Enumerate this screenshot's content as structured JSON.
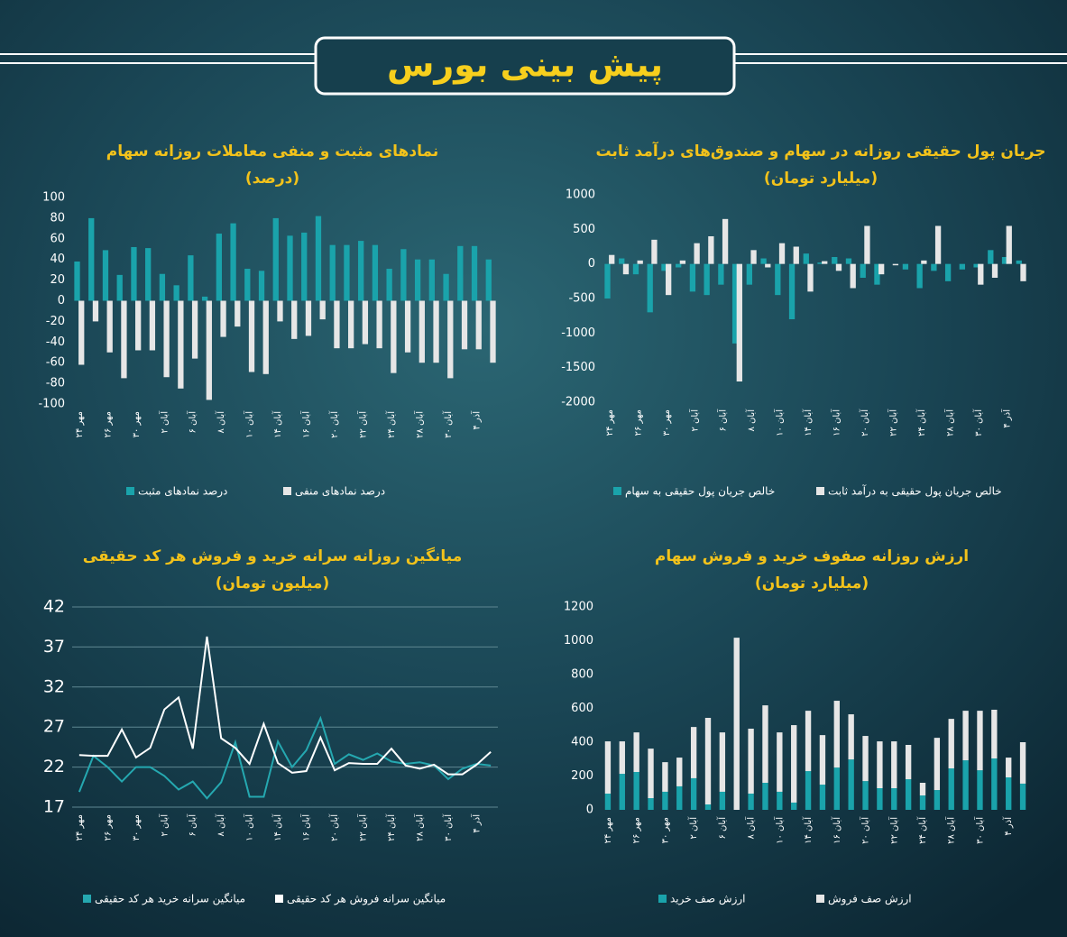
{
  "page_title": "پیش بینی بورس",
  "chart_data": [
    {
      "type": "bar",
      "title": "نمادهای مثبت و منفی معاملات روزانه سهام",
      "subtitle": "(درصد)",
      "categories": [
        "۲۴ مهر",
        null,
        "۲۶ مهر",
        null,
        "۳۰ مهر",
        null,
        "۲ آبان",
        null,
        "۶ آبان",
        null,
        "۸ آبان",
        null,
        "۱۰ آبان",
        null,
        "۱۴ آبان",
        null,
        "۱۶ آبان",
        null,
        "۲۰ آبان",
        null,
        "۲۲ آبان",
        null,
        "۲۴ آبان",
        null,
        "۲۸ آبان",
        null,
        "۳۰ آبان",
        null,
        "۴ آذر",
        null
      ],
      "series": [
        {
          "name": "درصد نمادهای مثبت",
          "color": "#1aa3ab",
          "values": [
            38,
            80,
            49,
            25,
            52,
            51,
            26,
            15,
            44,
            4,
            65,
            75,
            31,
            29,
            80,
            63,
            66,
            82,
            54,
            54,
            58,
            54,
            31,
            50,
            40,
            40,
            26,
            53,
            53,
            40
          ]
        },
        {
          "name": "درصد نمادهای منفی",
          "color": "#e6e6e6",
          "values": [
            -62,
            -20,
            -50,
            -75,
            -48,
            -48,
            -74,
            -85,
            -56,
            -96,
            -35,
            -25,
            -69,
            -71,
            -20,
            -37,
            -34,
            -18,
            -46,
            -46,
            -42,
            -46,
            -70,
            -50,
            -60,
            -60,
            -75,
            -47,
            -47,
            -60
          ]
        }
      ],
      "ylim": [
        -100,
        100
      ],
      "yticks": [
        -100,
        -80,
        -60,
        -40,
        -20,
        0,
        20,
        40,
        60,
        80,
        100
      ],
      "grid": false
    },
    {
      "type": "bar",
      "title": "جریان پول حقیقی روزانه در سهام و صندوق‌های درآمد ثابت",
      "subtitle": "(میلیارد تومان)",
      "categories": [
        "۲۴ مهر",
        null,
        "۲۶ مهر",
        null,
        "۳۰ مهر",
        null,
        "۲ آبان",
        null,
        "۶ آبان",
        null,
        "۸ آبان",
        null,
        "۱۰ آبان",
        null,
        "۱۴ آبان",
        null,
        "۱۶ آبان",
        null,
        "۲۰ آبان",
        null,
        "۲۲ آبان",
        null,
        "۲۴ آبان",
        null,
        "۲۸ آبان",
        null,
        "۳۰ آبان",
        null,
        "۴ آذر",
        null
      ],
      "series": [
        {
          "name": "خالص جریان پول حقیقی به سهام",
          "color": "#1aa3ab",
          "values": [
            -500,
            80,
            -150,
            -700,
            -100,
            -50,
            -400,
            -450,
            -300,
            -1150,
            -300,
            80,
            -450,
            -800,
            150,
            20,
            100,
            80,
            -200,
            -300,
            0,
            -80,
            -350,
            -100,
            -250,
            -80,
            -50,
            200,
            100,
            50
          ]
        },
        {
          "name": "خالص جریان پول حقیقی به درآمد ثابت",
          "color": "#e6e6e6",
          "values": [
            130,
            -150,
            50,
            350,
            -450,
            50,
            300,
            400,
            650,
            -1700,
            200,
            -50,
            300,
            250,
            -400,
            40,
            -100,
            -350,
            550,
            -150,
            -20,
            0,
            50,
            550,
            0,
            0,
            -300,
            -200,
            550,
            -250
          ]
        }
      ],
      "ylim": [
        -2000,
        1000
      ],
      "yticks": [
        -2000,
        -1500,
        -1000,
        -500,
        0,
        500,
        1000
      ],
      "grid": false
    },
    {
      "type": "line",
      "title": "میانگین روزانه سرانه خرید و فروش هر کد حقیقی",
      "subtitle": "(میلیون تومان)",
      "categories": [
        "۲۴ مهر",
        null,
        "۲۶ مهر",
        null,
        "۳۰ مهر",
        null,
        "۲ آبان",
        null,
        "۶ آبان",
        null,
        "۸ آبان",
        null,
        "۱۰ آبان",
        null,
        "۱۴ آبان",
        null,
        "۱۶ آبان",
        null,
        "۲۰ آبان",
        null,
        "۲۲ آبان",
        null,
        "۲۴ آبان",
        null,
        "۲۸ آبان",
        null,
        "۳۰ آبان",
        null,
        "۴ آذر",
        null
      ],
      "series": [
        {
          "name": "میانگین سرانه خرید هر کد حقیقی",
          "color": "#25a8b0",
          "values": [
            18.9,
            23.4,
            22.0,
            20.2,
            22.0,
            22.0,
            20.9,
            19.2,
            20.2,
            18.1,
            20.1,
            25.1,
            18.3,
            18.3,
            25.2,
            22.0,
            24.1,
            28.1,
            22.4,
            23.6,
            22.9,
            23.7,
            22.7,
            22.4,
            22.6,
            22.2,
            20.5,
            21.8,
            22.4,
            22.2
          ]
        },
        {
          "name": "میانگین سرانه فروش هر کد حقیقی",
          "color": "#ffffff",
          "values": [
            23.5,
            23.4,
            23.4,
            26.7,
            23.2,
            24.4,
            29.2,
            30.7,
            24.3,
            38.3,
            25.6,
            24.4,
            22.4,
            27.4,
            22.5,
            21.3,
            21.5,
            25.7,
            21.6,
            22.5,
            22.4,
            22.4,
            24.3,
            22.2,
            21.8,
            22.3,
            21.1,
            21.1,
            22.3,
            23.9
          ]
        }
      ],
      "ylim": [
        17,
        42
      ],
      "yticks": [
        17,
        22,
        27,
        32,
        37,
        42
      ],
      "grid": true
    },
    {
      "type": "stacked_bar",
      "title": "ارزش روزانه صفوف خرید و فروش سهام",
      "subtitle": "(میلیارد تومان)",
      "categories": [
        "۲۴ مهر",
        null,
        "۲۶ مهر",
        null,
        "۳۰ مهر",
        null,
        "۲ آبان",
        null,
        "۶ آبان",
        null,
        "۸ آبان",
        null,
        "۱۰ آبان",
        null,
        "۱۴ آبان",
        null,
        "۱۶ آبان",
        null,
        "۲۰ آبان",
        null,
        "۲۲ آبان",
        null,
        "۲۴ آبان",
        null,
        "۲۸ آبان",
        null,
        "۳۰ آبان",
        null,
        "۴ آذر",
        null
      ],
      "series": [
        {
          "name": "ارزش صف خرید",
          "color": "#1aa3ab",
          "values": [
            96,
            213,
            224,
            69,
            107,
            139,
            187,
            32,
            107,
            0,
            96,
            160,
            107,
            43,
            229,
            149,
            250,
            298,
            170,
            128,
            128,
            181,
            85,
            117,
            245,
            293,
            234,
            304,
            192,
            155
          ]
        },
        {
          "name": "ارزش صف فروش",
          "color": "#e6e6e6",
          "values": [
            309,
            192,
            234,
            293,
            175,
            170,
            303,
            512,
            351,
            1018,
            384,
            458,
            351,
            458,
            357,
            293,
            395,
            267,
            267,
            277,
            277,
            203,
            75,
            309,
            293,
            293,
            352,
            288,
            117,
            245
          ]
        }
      ],
      "ylim": [
        0,
        1200
      ],
      "yticks": [
        0,
        200,
        400,
        600,
        800,
        1000,
        1200
      ],
      "grid": false
    }
  ]
}
